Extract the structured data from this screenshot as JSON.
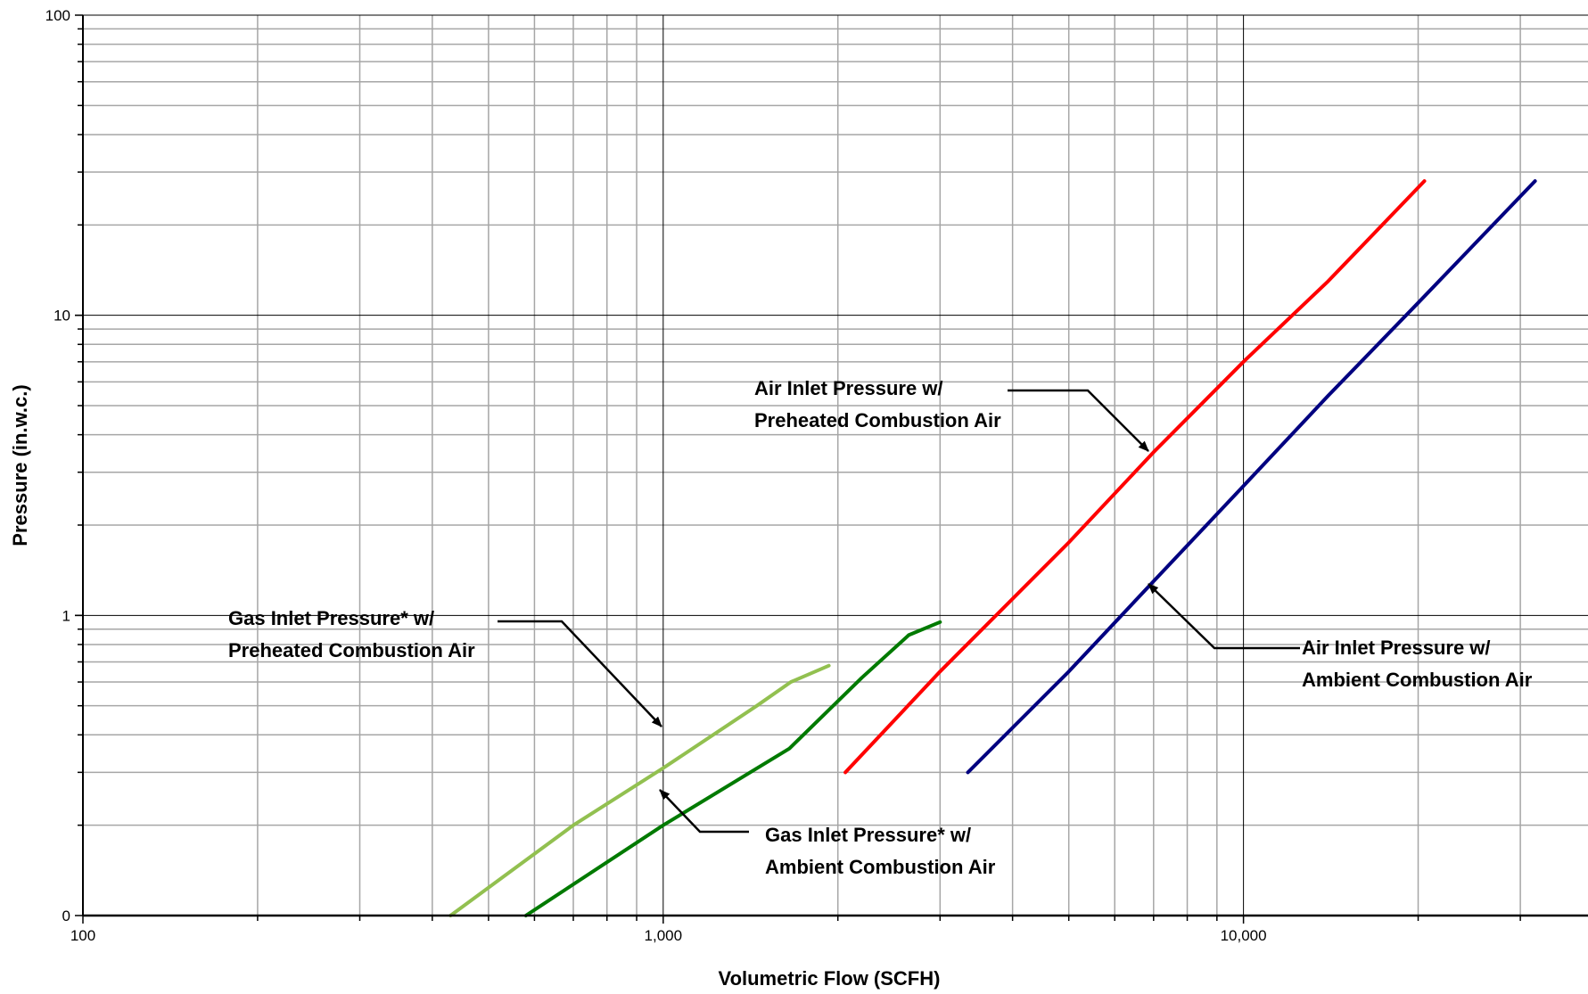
{
  "chart_data": {
    "type": "line",
    "x_scale": "log",
    "y_scale": "log",
    "xlim": [
      100,
      50000
    ],
    "ylim": [
      0.1,
      100
    ],
    "grid": true,
    "xlabel": "Volumetric Flow (SCFH)",
    "ylabel": "Pressure (in.w.c.)",
    "x_ticks": [
      {
        "value": 100,
        "label": "100"
      },
      {
        "value": 1000,
        "label": "1,000"
      },
      {
        "value": 10000,
        "label": "10,000"
      }
    ],
    "y_ticks": [
      {
        "value": 0.1,
        "label": "0"
      },
      {
        "value": 1,
        "label": "1"
      },
      {
        "value": 10,
        "label": "10"
      },
      {
        "value": 100,
        "label": "100"
      }
    ],
    "series": [
      {
        "color": "#92c050",
        "points": [
          [
            430,
            0.1
          ],
          [
            700,
            0.2
          ],
          [
            1000,
            0.31
          ],
          [
            1450,
            0.5
          ],
          [
            1660,
            0.6
          ],
          [
            1930,
            0.68
          ]
        ]
      },
      {
        "color": "#007a00",
        "points": [
          [
            580,
            0.1
          ],
          [
            1000,
            0.2
          ],
          [
            1650,
            0.36
          ],
          [
            2200,
            0.62
          ],
          [
            2650,
            0.86
          ],
          [
            3000,
            0.95
          ]
        ]
      },
      {
        "color": "#ff0000",
        "points": [
          [
            2060,
            0.3
          ],
          [
            3000,
            0.65
          ],
          [
            5000,
            1.75
          ],
          [
            7000,
            3.5
          ],
          [
            10000,
            7.0
          ],
          [
            14000,
            13.0
          ],
          [
            20500,
            28.0
          ]
        ]
      },
      {
        "color": "#000080",
        "points": [
          [
            3350,
            0.3
          ],
          [
            5000,
            0.65
          ],
          [
            7000,
            1.3
          ],
          [
            10000,
            2.7
          ],
          [
            14000,
            5.4
          ],
          [
            20000,
            11.0
          ],
          [
            31800,
            28.0
          ]
        ]
      }
    ],
    "annotations": [
      {
        "lines": [
          "Gas Inlet Pressure* w/",
          "Preheated Combustion Air"
        ]
      },
      {
        "lines": [
          "Gas Inlet Pressure* w/",
          "Ambient Combustion Air"
        ]
      },
      {
        "lines": [
          "Air Inlet Pressure w/",
          "Preheated Combustion Air"
        ]
      },
      {
        "lines": [
          "Air Inlet Pressure w/",
          "Ambient Combustion Air"
        ]
      }
    ]
  }
}
